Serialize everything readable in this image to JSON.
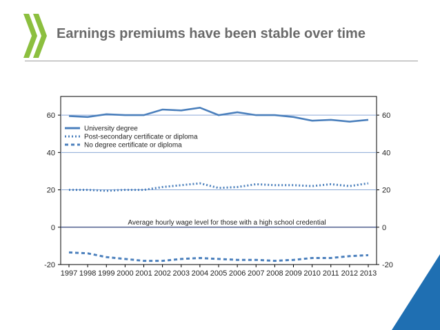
{
  "header": {
    "title": "Earnings premiums have been stable over time"
  },
  "brand": {
    "accent_green": "#8cbf3f",
    "accent_blue": "#1f6fb2",
    "logo_icon": "oecd-chevrons-icon",
    "corner_icon": "blue-corner-triangle-icon"
  },
  "chart_data": {
    "type": "line",
    "title": "",
    "xlabel": "",
    "ylabel": "",
    "x": [
      1997,
      1998,
      1999,
      2000,
      2001,
      2002,
      2003,
      2004,
      2005,
      2006,
      2007,
      2008,
      2009,
      2010,
      2011,
      2012,
      2013
    ],
    "ylim": [
      -20,
      70
    ],
    "yticks": [
      -20,
      0,
      20,
      40,
      60
    ],
    "gridlines": [
      0,
      20,
      40,
      60
    ],
    "grid": true,
    "legend_position": "top-left",
    "series": [
      {
        "name": "University degree",
        "style": "solid",
        "color": "#4a7fbc",
        "values": [
          59.5,
          59,
          60.5,
          60,
          60,
          63,
          62.5,
          64,
          60,
          61.5,
          60,
          60,
          59,
          57,
          57.5,
          56.5,
          57.5
        ]
      },
      {
        "name": "Post-secondary certificate or diploma",
        "style": "dotted",
        "color": "#4a7fbc",
        "values": [
          20,
          20,
          19.5,
          20,
          20,
          21.5,
          22.5,
          23.5,
          21,
          21.5,
          23,
          22.5,
          22.5,
          22,
          23,
          22,
          23.5
        ]
      },
      {
        "name": "No degree certificate or diploma",
        "style": "dashed",
        "color": "#4a7fbc",
        "values": [
          -13.5,
          -14,
          -16,
          -17,
          -18,
          -18,
          -17,
          -16.5,
          -17,
          -17.5,
          -17.5,
          -18,
          -17.5,
          -16.5,
          -16.5,
          -15.5,
          -15
        ]
      }
    ],
    "annotation": "Average hourly wage level for those with a high school credential"
  }
}
